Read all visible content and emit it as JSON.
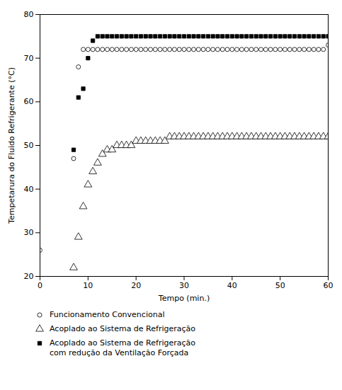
{
  "chart_data": {
    "type": "scatter",
    "xlabel": "Tempo (min.)",
    "ylabel": "Tempetarura do Fluido Refrigerante (°C)",
    "xlim": [
      0,
      60
    ],
    "ylim": [
      20,
      80
    ],
    "xticks": [
      0,
      10,
      20,
      30,
      40,
      50,
      60
    ],
    "yticks": [
      20,
      30,
      40,
      50,
      60,
      70,
      80
    ],
    "grid": false,
    "legend": "bottom",
    "series": [
      {
        "name": "Funcionamento Convencional",
        "color": "#000000",
        "marker": "circle-open",
        "x": [
          0,
          7,
          8,
          9,
          10,
          11,
          12,
          13,
          14,
          15,
          16,
          17,
          18,
          19,
          20,
          21,
          22,
          23,
          24,
          25,
          26,
          27,
          28,
          29,
          30,
          31,
          32,
          33,
          34,
          35,
          36,
          37,
          38,
          39,
          40,
          41,
          42,
          43,
          44,
          45,
          46,
          47,
          48,
          49,
          50,
          51,
          52,
          53,
          54,
          55,
          56,
          57,
          58,
          59,
          60
        ],
        "values": [
          26,
          47,
          68,
          72,
          72,
          72,
          72,
          72,
          72,
          72,
          72,
          72,
          72,
          72,
          72,
          72,
          72,
          72,
          72,
          72,
          72,
          72,
          72,
          72,
          72,
          72,
          72,
          72,
          72,
          72,
          72,
          72,
          72,
          72,
          72,
          72,
          72,
          72,
          72,
          72,
          72,
          72,
          72,
          72,
          72,
          72,
          72,
          72,
          72,
          72,
          72,
          72,
          72,
          72,
          73
        ]
      },
      {
        "name": "Acoplado ao Sistema de Refrigeração",
        "color": "#000000",
        "marker": "triangle-open",
        "x": [
          7,
          8,
          9,
          10,
          11,
          12,
          13,
          14,
          15,
          16,
          17,
          18,
          19,
          20,
          21,
          22,
          23,
          24,
          25,
          26,
          27,
          28,
          29,
          30,
          31,
          32,
          33,
          34,
          35,
          36,
          37,
          38,
          39,
          40,
          41,
          42,
          43,
          44,
          45,
          46,
          47,
          48,
          49,
          50,
          51,
          52,
          53,
          54,
          55,
          56,
          57,
          58,
          59,
          60
        ],
        "values": [
          22,
          29,
          36,
          41,
          44,
          46,
          48,
          49,
          49,
          50,
          50,
          50,
          50,
          51,
          51,
          51,
          51,
          51,
          51,
          51,
          52,
          52,
          52,
          52,
          52,
          52,
          52,
          52,
          52,
          52,
          52,
          52,
          52,
          52,
          52,
          52,
          52,
          52,
          52,
          52,
          52,
          52,
          52,
          52,
          52,
          52,
          52,
          52,
          52,
          52,
          52,
          52,
          52,
          52
        ]
      },
      {
        "name": "Acoplado ao Sistema de Refrigeração\ncom redução da Ventilação Forçada",
        "color": "#000000",
        "marker": "square",
        "x": [
          7,
          8,
          9,
          10,
          11,
          12,
          13,
          14,
          15,
          16,
          17,
          18,
          19,
          20,
          21,
          22,
          23,
          24,
          25,
          26,
          27,
          28,
          29,
          30,
          31,
          32,
          33,
          34,
          35,
          36,
          37,
          38,
          39,
          40,
          41,
          42,
          43,
          44,
          45,
          46,
          47,
          48,
          49,
          50,
          51,
          52,
          53,
          54,
          55,
          56,
          57,
          58,
          59,
          60
        ],
        "values": [
          49,
          61,
          63,
          70,
          74,
          75,
          75,
          75,
          75,
          75,
          75,
          75,
          75,
          75,
          75,
          75,
          75,
          75,
          75,
          75,
          75,
          75,
          75,
          75,
          75,
          75,
          75,
          75,
          75,
          75,
          75,
          75,
          75,
          75,
          75,
          75,
          75,
          75,
          75,
          75,
          75,
          75,
          75,
          75,
          75,
          75,
          75,
          75,
          75,
          75,
          75,
          75,
          75,
          75
        ]
      }
    ]
  }
}
